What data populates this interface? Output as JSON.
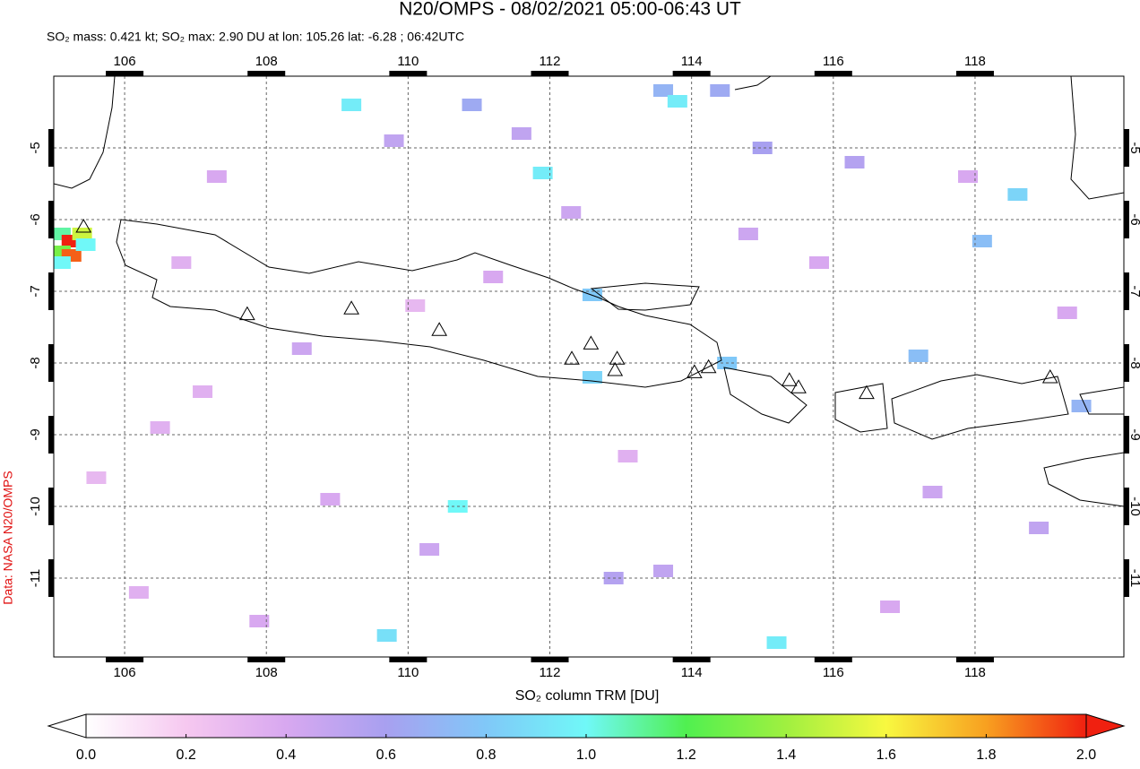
{
  "chart_data": {
    "type": "map",
    "title": "N20/OMPS - 08/02/2021 05:00-06:43 UT",
    "subtitle": "SO₂ mass: 0.421 kt; SO₂ max: 2.90 DU at lon: 105.26 lat: -6.28 ; 06:42UTC",
    "credit": "Data: NASA N20/OMPS",
    "colorbar_label": "SO₂ column TRM [DU]",
    "xlim": [
      105,
      120.1
    ],
    "ylim": [
      -12.1,
      -4
    ],
    "xticks": [
      106,
      108,
      110,
      112,
      114,
      116,
      118
    ],
    "yticks": [
      -5,
      -6,
      -7,
      -8,
      -9,
      -10,
      -11
    ],
    "grid": true,
    "colormap": [
      "#ffffff",
      "#f6c8f0",
      "#d8a8f0",
      "#a8a0f0",
      "#80c8f8",
      "#70f8f8",
      "#50f050",
      "#a0f040",
      "#f8f840",
      "#f8a020",
      "#f02010"
    ],
    "clim": [
      0,
      2
    ],
    "cticks": [
      {
        "value": 0,
        "label": "0.0"
      },
      0.2,
      0.4,
      0.6,
      0.8,
      {
        "value": 1,
        "label": "1.0"
      },
      1.2,
      1.4,
      1.6,
      1.8,
      {
        "value": 2,
        "label": "2.0"
      }
    ],
    "pixels": {
      "lon": [
        105.1,
        105.25,
        105.4,
        105.1,
        105.25,
        105.45,
        105.1,
        113.6,
        113.8,
        114.4,
        111.9,
        109.2,
        110.7,
        110.9,
        112.6,
        112.6,
        114.5,
        115.2,
        109.7,
        118.6,
        118.1,
        117.2,
        119.5,
        115.0,
        116.3,
        107.3,
        106.8,
        108.5,
        109.8,
        111.2,
        112.3,
        113.1,
        115.8,
        117.4,
        118.9,
        106.2,
        107.9,
        110.3,
        113.6,
        116.8,
        105.6,
        107.1,
        108.9,
        111.6,
        114.8,
        119.3,
        106.5,
        112.9,
        117.9,
        110.1
      ],
      "lat": [
        -6.2,
        -6.3,
        -6.2,
        -6.45,
        -6.5,
        -6.35,
        -6.6,
        -4.2,
        -4.35,
        -4.2,
        -5.35,
        -4.4,
        -10.0,
        -4.4,
        -7.05,
        -8.2,
        -8.0,
        -11.9,
        -11.8,
        -5.65,
        -6.3,
        -7.9,
        -8.6,
        -5.0,
        -5.2,
        -5.4,
        -6.6,
        -7.8,
        -4.9,
        -6.8,
        -5.9,
        -9.3,
        -6.6,
        -9.8,
        -10.3,
        -11.2,
        -11.6,
        -10.6,
        -10.9,
        -11.4,
        -9.6,
        -8.4,
        -9.9,
        -4.8,
        -6.2,
        -7.3,
        -8.9,
        -11.0,
        -5.4,
        -7.2
      ],
      "values": [
        1.1,
        2.9,
        1.5,
        1.3,
        1.9,
        1.0,
        1.0,
        0.7,
        0.95,
        0.65,
        0.95,
        0.95,
        1.0,
        0.65,
        0.8,
        0.85,
        0.8,
        0.95,
        0.9,
        0.85,
        0.75,
        0.75,
        0.7,
        0.6,
        0.55,
        0.4,
        0.35,
        0.45,
        0.5,
        0.4,
        0.45,
        0.35,
        0.4,
        0.45,
        0.5,
        0.35,
        0.4,
        0.45,
        0.5,
        0.4,
        0.3,
        0.35,
        0.4,
        0.5,
        0.45,
        0.4,
        0.35,
        0.55,
        0.4,
        0.3
      ]
    },
    "volcanoes": {
      "lon": [
        105.42,
        107.73,
        109.2,
        110.44,
        112.31,
        112.58,
        112.92,
        112.95,
        114.04,
        114.24,
        115.38,
        115.51,
        116.47,
        119.06
      ],
      "lat": [
        -6.1,
        -7.32,
        -7.24,
        -7.54,
        -7.94,
        -7.73,
        -8.1,
        -7.94,
        -8.13,
        -8.06,
        -8.24,
        -8.34,
        -8.42,
        -8.2
      ]
    }
  }
}
